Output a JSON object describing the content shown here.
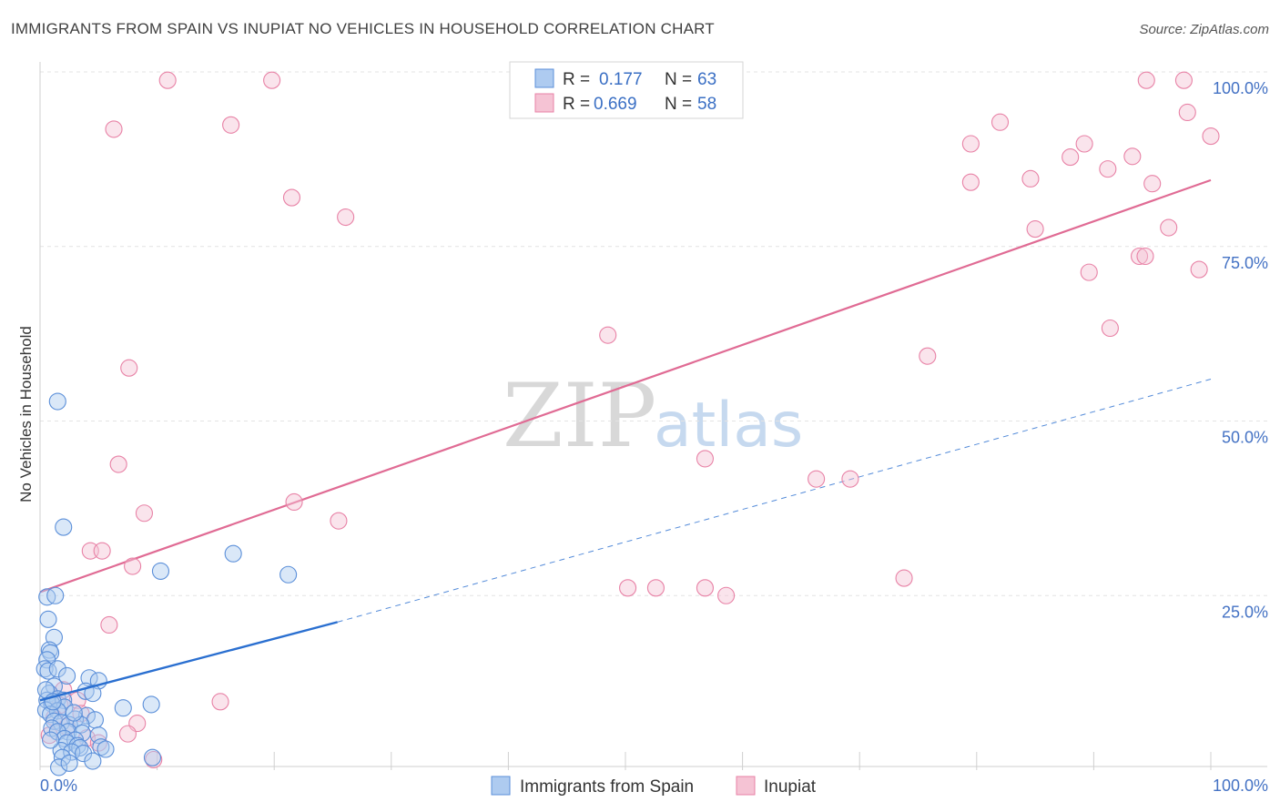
{
  "title": "IMMIGRANTS FROM SPAIN VS INUPIAT NO VEHICLES IN HOUSEHOLD CORRELATION CHART",
  "source": "Source: ZipAtlas.com",
  "watermark": {
    "zip": "ZIP",
    "atlas": "atlas"
  },
  "colors": {
    "blue": "#5b8fd9",
    "blue_fill": "#aecbf0",
    "blue_line": "#2a6fd0",
    "pink": "#e882a6",
    "pink_fill": "#f5c3d4",
    "pink_line": "#e06b94",
    "tick": "#4472c4"
  },
  "legend": {
    "r_label": "R =",
    "n_label": "N =",
    "rows": [
      {
        "series": "Immigrants from Spain",
        "r": "0.177",
        "n": "63"
      },
      {
        "series": "Inupiat",
        "r": "0.669",
        "n": "58"
      }
    ]
  },
  "chart_data": {
    "type": "scatter",
    "title": "IMMIGRANTS FROM SPAIN VS INUPIAT NO VEHICLES IN HOUSEHOLD CORRELATION CHART",
    "xlabel": "",
    "ylabel": "No Vehicles in Household",
    "xlim": [
      0,
      100
    ],
    "ylim": [
      0,
      100
    ],
    "y_ticks": [
      "25.0%",
      "50.0%",
      "75.0%",
      "100.0%"
    ],
    "y_tick_values": [
      25,
      50,
      75,
      100
    ],
    "x_tick_labels": [
      "0.0%",
      "100.0%"
    ],
    "grid": true,
    "legend_position": "top-center",
    "series": [
      {
        "name": "Immigrants from Spain",
        "r": 0.177,
        "n": 63,
        "trend": {
          "x0": 0,
          "y0": 10.0,
          "x1": 25.4,
          "y1": 21.2,
          "dashed_to_x": 100,
          "dashed_to_y": 56.0
        },
        "points": [
          [
            1.5,
            52.8
          ],
          [
            2.0,
            34.8
          ],
          [
            0.6,
            24.8
          ],
          [
            1.3,
            25.0
          ],
          [
            10.3,
            28.5
          ],
          [
            16.5,
            31.0
          ],
          [
            21.2,
            28.0
          ],
          [
            0.7,
            21.6
          ],
          [
            1.2,
            19.0
          ],
          [
            0.8,
            17.2
          ],
          [
            0.9,
            16.8
          ],
          [
            0.6,
            15.8
          ],
          [
            0.4,
            14.5
          ],
          [
            0.7,
            14.2
          ],
          [
            1.5,
            14.5
          ],
          [
            2.3,
            13.5
          ],
          [
            4.2,
            13.2
          ],
          [
            5.0,
            12.8
          ],
          [
            1.2,
            12.0
          ],
          [
            3.9,
            11.3
          ],
          [
            4.5,
            11.0
          ],
          [
            0.8,
            11.0
          ],
          [
            1.5,
            10.2
          ],
          [
            2.0,
            10.0
          ],
          [
            0.6,
            10.0
          ],
          [
            1.0,
            9.5
          ],
          [
            2.1,
            9.0
          ],
          [
            7.1,
            8.9
          ],
          [
            9.5,
            9.4
          ],
          [
            0.5,
            8.6
          ],
          [
            1.5,
            8.5
          ],
          [
            0.9,
            8.0
          ],
          [
            4.0,
            7.8
          ],
          [
            4.7,
            7.2
          ],
          [
            1.2,
            7.0
          ],
          [
            3.0,
            7.3
          ],
          [
            1.8,
            6.8
          ],
          [
            2.5,
            6.5
          ],
          [
            3.5,
            6.5
          ],
          [
            1.0,
            6.0
          ],
          [
            2.4,
            5.5
          ],
          [
            1.5,
            5.5
          ],
          [
            3.6,
            5.3
          ],
          [
            5.0,
            5.0
          ],
          [
            2.1,
            4.5
          ],
          [
            3.0,
            4.3
          ],
          [
            2.3,
            3.9
          ],
          [
            3.2,
            3.5
          ],
          [
            3.4,
            3.2
          ],
          [
            5.2,
            3.3
          ],
          [
            5.6,
            3.0
          ],
          [
            1.8,
            2.8
          ],
          [
            2.7,
            2.6
          ],
          [
            3.7,
            2.4
          ],
          [
            1.9,
            1.8
          ],
          [
            4.5,
            1.3
          ],
          [
            9.6,
            1.8
          ],
          [
            1.6,
            0.4
          ],
          [
            2.5,
            1.0
          ],
          [
            0.9,
            4.3
          ],
          [
            0.5,
            11.5
          ],
          [
            1.1,
            9.8
          ],
          [
            2.9,
            8.2
          ]
        ]
      },
      {
        "name": "Inupiat",
        "r": 0.669,
        "n": 58,
        "trend": {
          "x0": 0,
          "y0": 25.5,
          "x1": 100,
          "y1": 84.5
        },
        "points": [
          [
            10.9,
            98.8
          ],
          [
            19.8,
            98.8
          ],
          [
            6.3,
            91.8
          ],
          [
            16.3,
            92.4
          ],
          [
            21.5,
            82.0
          ],
          [
            26.1,
            79.2
          ],
          [
            7.6,
            57.6
          ],
          [
            48.5,
            62.3
          ],
          [
            6.7,
            43.8
          ],
          [
            8.9,
            36.8
          ],
          [
            21.7,
            38.4
          ],
          [
            25.5,
            35.7
          ],
          [
            4.3,
            31.4
          ],
          [
            5.3,
            31.4
          ],
          [
            7.9,
            29.2
          ],
          [
            5.9,
            20.8
          ],
          [
            15.4,
            9.8
          ],
          [
            2.0,
            11.5
          ],
          [
            3.2,
            10.0
          ],
          [
            1.7,
            9.3
          ],
          [
            3.5,
            8.1
          ],
          [
            8.3,
            6.7
          ],
          [
            7.5,
            5.2
          ],
          [
            4.0,
            4.6
          ],
          [
            5.0,
            3.9
          ],
          [
            0.8,
            5.0
          ],
          [
            9.7,
            1.5
          ],
          [
            2.3,
            6.2
          ],
          [
            1.2,
            7.5
          ],
          [
            94.5,
            98.8
          ],
          [
            97.7,
            98.8
          ],
          [
            98.0,
            94.2
          ],
          [
            100.0,
            90.8
          ],
          [
            82.0,
            92.8
          ],
          [
            79.5,
            89.7
          ],
          [
            89.2,
            89.7
          ],
          [
            93.3,
            87.9
          ],
          [
            88.0,
            87.8
          ],
          [
            91.2,
            86.1
          ],
          [
            95.0,
            84.0
          ],
          [
            84.6,
            84.7
          ],
          [
            79.5,
            84.2
          ],
          [
            85.0,
            77.5
          ],
          [
            96.4,
            77.7
          ],
          [
            93.9,
            73.6
          ],
          [
            94.4,
            73.6
          ],
          [
            99.0,
            71.7
          ],
          [
            89.6,
            71.3
          ],
          [
            91.4,
            63.3
          ],
          [
            75.8,
            59.3
          ],
          [
            56.8,
            44.6
          ],
          [
            66.3,
            41.7
          ],
          [
            69.2,
            41.7
          ],
          [
            73.8,
            27.5
          ],
          [
            50.2,
            26.1
          ],
          [
            52.6,
            26.1
          ],
          [
            56.8,
            26.1
          ],
          [
            58.6,
            25.0
          ]
        ]
      }
    ]
  },
  "bottom_legend": [
    {
      "label": "Immigrants from Spain"
    },
    {
      "label": "Inupiat"
    }
  ]
}
